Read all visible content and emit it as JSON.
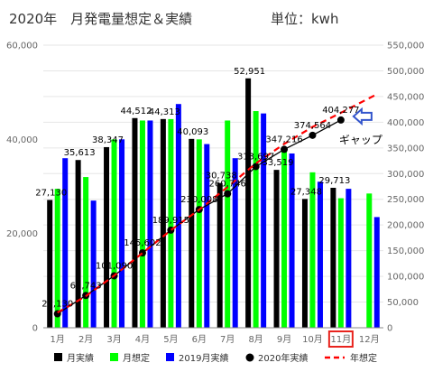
{
  "chart_data": {
    "type": "bar",
    "title": "2020年　月発電量想定＆実績",
    "unit_label": "単位：kwh",
    "categories": [
      "1月",
      "2月",
      "3月",
      "4月",
      "5月",
      "6月",
      "7月",
      "8月",
      "9月",
      "10月",
      "11月",
      "12月"
    ],
    "series": [
      {
        "name": "月実績",
        "kind": "bar",
        "axis": "left",
        "color": "#000000",
        "values": [
          27130,
          35613,
          38347,
          44512,
          44313,
          40093,
          30738,
          52951,
          33519,
          27348,
          29713,
          null
        ]
      },
      {
        "name": "月想定",
        "kind": "bar",
        "axis": "left",
        "color": "#00ff00",
        "values": [
          29500,
          32000,
          40000,
          44000,
          44300,
          40000,
          44000,
          46000,
          38000,
          33000,
          27500,
          28500
        ]
      },
      {
        "name": "2019月実績",
        "kind": "bar",
        "axis": "left",
        "color": "#0000ff",
        "values": [
          36000,
          27000,
          40000,
          44000,
          47500,
          39000,
          36000,
          45500,
          37000,
          31000,
          29500,
          23500
        ]
      },
      {
        "name": "2020年実績",
        "kind": "line-markers",
        "axis": "right",
        "color": "#000000",
        "values": [
          27130,
          62743,
          101090,
          145602,
          189915,
          230008,
          260746,
          313697,
          347216,
          374564,
          404277,
          null
        ]
      },
      {
        "name": "年想定",
        "kind": "dashed-line",
        "axis": "right",
        "color": "#ff0000",
        "values": [
          29500,
          61500,
          101500,
          145500,
          189800,
          229800,
          273800,
          319800,
          357800,
          390800,
          418300,
          446800
        ]
      }
    ],
    "bar_labels": [
      "27,130",
      "35,613",
      "38,347",
      "44,512",
      "44,313",
      "40,093",
      "30,738",
      "52,951",
      "33,519",
      "27,348",
      "29,713"
    ],
    "line_labels": [
      "27,130",
      "62,743",
      "101,090",
      "145,602",
      "189,915",
      "230,008",
      "260,746",
      "313,697",
      "347,216",
      "374,564",
      "404,277"
    ],
    "left_axis": {
      "ylim": [
        0,
        60000
      ],
      "ticks": [
        "0",
        "20,000",
        "40,000",
        "60,000"
      ]
    },
    "right_axis": {
      "ylim": [
        0,
        550000
      ],
      "ticks": [
        "0",
        "50,000",
        "100,000",
        "150,000",
        "200,000",
        "250,000",
        "300,000",
        "350,000",
        "400,000",
        "450,000",
        "500,000",
        "550,000"
      ]
    },
    "highlighted_category": "11月",
    "highlight_color": "#e8231d",
    "annotation": {
      "text": "ギャップ",
      "arrow_color": "#3355cc"
    },
    "grid": true,
    "legend_position": "bottom"
  }
}
